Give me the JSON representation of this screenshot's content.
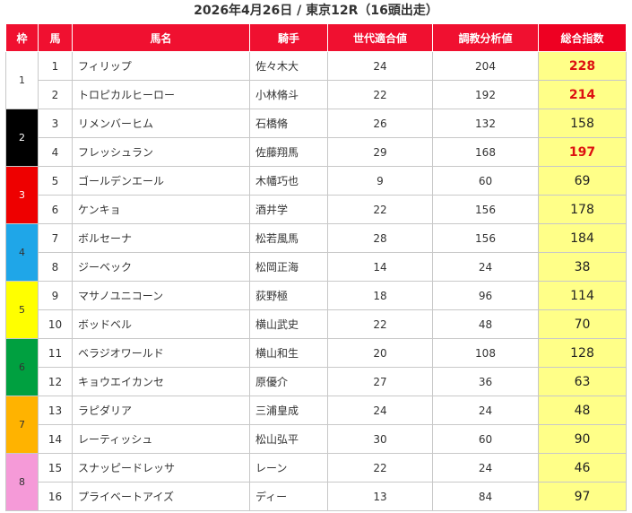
{
  "title": "2026年4月26日 / 東京12R（16頭出走）",
  "headers": {
    "waku": "枠",
    "uma": "馬",
    "name": "馬名",
    "jockey": "騎手",
    "sedai": "世代適合値",
    "chokyo": "調教分析値",
    "total": "総合指数"
  },
  "colors": {
    "header_bg": "#f01030",
    "total_bg": "#ffff88",
    "highlight_text": "#dd1111"
  },
  "wakus": [
    {
      "num": "1",
      "bg": "#ffffff",
      "fg": "#333333"
    },
    {
      "num": "2",
      "bg": "#000000",
      "fg": "#ffffff"
    },
    {
      "num": "3",
      "bg": "#ee0000",
      "fg": "#ffffff"
    },
    {
      "num": "4",
      "bg": "#1fa6e8",
      "fg": "#333333"
    },
    {
      "num": "5",
      "bg": "#ffff00",
      "fg": "#333333"
    },
    {
      "num": "6",
      "bg": "#00a040",
      "fg": "#333333"
    },
    {
      "num": "7",
      "bg": "#ffb300",
      "fg": "#333333"
    },
    {
      "num": "8",
      "bg": "#f59ad8",
      "fg": "#333333"
    }
  ],
  "rows": [
    {
      "no": "1",
      "name": "フィリップ",
      "jockey": "佐々木大",
      "sedai": "24",
      "chokyo": "204",
      "total": "228",
      "hi": true
    },
    {
      "no": "2",
      "name": "トロピカルヒーロー",
      "jockey": "小林脩斗",
      "sedai": "22",
      "chokyo": "192",
      "total": "214",
      "hi": true
    },
    {
      "no": "3",
      "name": "リメンバーヒム",
      "jockey": "石橋脩",
      "sedai": "26",
      "chokyo": "132",
      "total": "158",
      "hi": false
    },
    {
      "no": "4",
      "name": "フレッシュラン",
      "jockey": "佐藤翔馬",
      "sedai": "29",
      "chokyo": "168",
      "total": "197",
      "hi": true
    },
    {
      "no": "5",
      "name": "ゴールデンエール",
      "jockey": "木幡巧也",
      "sedai": "9",
      "chokyo": "60",
      "total": "69",
      "hi": false
    },
    {
      "no": "6",
      "name": "ケンキョ",
      "jockey": "酒井学",
      "sedai": "22",
      "chokyo": "156",
      "total": "178",
      "hi": false
    },
    {
      "no": "7",
      "name": "ボルセーナ",
      "jockey": "松若風馬",
      "sedai": "28",
      "chokyo": "156",
      "total": "184",
      "hi": false
    },
    {
      "no": "8",
      "name": "ジーベック",
      "jockey": "松岡正海",
      "sedai": "14",
      "chokyo": "24",
      "total": "38",
      "hi": false
    },
    {
      "no": "9",
      "name": "マサノユニコーン",
      "jockey": "荻野極",
      "sedai": "18",
      "chokyo": "96",
      "total": "114",
      "hi": false
    },
    {
      "no": "10",
      "name": "ボッドベル",
      "jockey": "横山武史",
      "sedai": "22",
      "chokyo": "48",
      "total": "70",
      "hi": false
    },
    {
      "no": "11",
      "name": "ベラジオワールド",
      "jockey": "横山和生",
      "sedai": "20",
      "chokyo": "108",
      "total": "128",
      "hi": false
    },
    {
      "no": "12",
      "name": "キョウエイカンセ",
      "jockey": "原優介",
      "sedai": "27",
      "chokyo": "36",
      "total": "63",
      "hi": false
    },
    {
      "no": "13",
      "name": "ラピダリア",
      "jockey": "三浦皇成",
      "sedai": "24",
      "chokyo": "24",
      "total": "48",
      "hi": false
    },
    {
      "no": "14",
      "name": "レーティッシュ",
      "jockey": "松山弘平",
      "sedai": "30",
      "chokyo": "60",
      "total": "90",
      "hi": false
    },
    {
      "no": "15",
      "name": "スナッピードレッサ",
      "jockey": "レーン",
      "sedai": "22",
      "chokyo": "24",
      "total": "46",
      "hi": false
    },
    {
      "no": "16",
      "name": "プライベートアイズ",
      "jockey": "ディー",
      "sedai": "13",
      "chokyo": "84",
      "total": "97",
      "hi": false
    }
  ]
}
